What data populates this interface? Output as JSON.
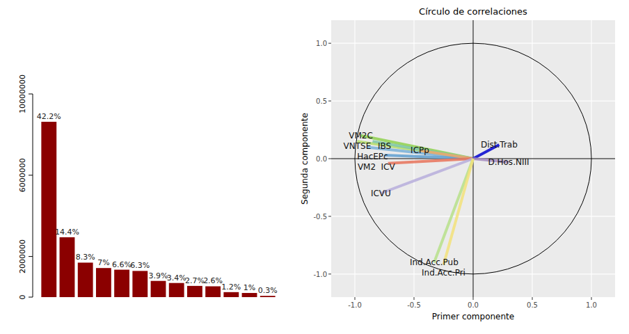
{
  "chart_data": [
    {
      "type": "bar",
      "categories": [
        null,
        null,
        null,
        null,
        null,
        null,
        null,
        null,
        null,
        null,
        null,
        null,
        null
      ],
      "values": [
        8630000,
        2944800,
        1697350,
        1431500,
        1349700,
        1288350,
        797550,
        695300,
        552150,
        531700,
        245400,
        204500,
        61350
      ],
      "value_labels": [
        "42.2%",
        "14.4%",
        "8.3%",
        "7%",
        "6.6%",
        "6.3%",
        "3.9%",
        "3.4%",
        "2.7%",
        "2.6%",
        "1.2%",
        "1%",
        "0.3%"
      ],
      "color": "#8b0000",
      "ylim": [
        0,
        10000000
      ],
      "yticks": [
        0,
        2000000,
        6000000,
        10000000
      ],
      "data_labels": true,
      "tick_labels": "y"
    },
    {
      "type": "vector",
      "title": "Círculo de correlaciones",
      "x_label": "Primer componente",
      "y_label": "Segunda componente",
      "xlim": [
        -1.2,
        1.2
      ],
      "ylim": [
        -1.2,
        1.2
      ],
      "xticks": [
        {
          "value": -1,
          "label": "-1.0"
        },
        {
          "value": -0.5,
          "label": "-0.5"
        },
        {
          "value": 0,
          "label": "0.0"
        },
        {
          "value": 0.5,
          "label": "0.5"
        },
        {
          "value": 1,
          "label": "1.0"
        }
      ],
      "yticks": [
        {
          "value": -1,
          "label": "-1.0"
        },
        {
          "value": -0.5,
          "label": "-0.5"
        },
        {
          "value": 0,
          "label": "0.0"
        },
        {
          "value": 0.5,
          "label": "0.5"
        },
        {
          "value": 1,
          "label": "1.0"
        }
      ],
      "grid": true,
      "series": [
        {
          "name": "VM2C",
          "color": "#8fd14f",
          "x": [
            -0.95
          ],
          "values": [
            0.2
          ]
        },
        {
          "name": "VNTSE",
          "color": "#b5dd6a",
          "x": [
            -0.98
          ],
          "values": [
            0.15
          ]
        },
        {
          "name": "HacEPc",
          "color": "#7cc7a6",
          "x": [
            -0.85
          ],
          "values": [
            0.15
          ]
        },
        {
          "name": "VM2",
          "color": "#79b0d8",
          "x": [
            -0.9
          ],
          "values": [
            0.1
          ]
        },
        {
          "name": "IBS",
          "color": "#5f9fd0",
          "x": [
            -0.75
          ],
          "values": [
            0.03
          ]
        },
        {
          "name": "ICPp",
          "color": "#f0a868",
          "x": [
            -0.45
          ],
          "values": [
            0.07
          ]
        },
        {
          "name": "ICV",
          "color": "#e8735a",
          "x": [
            -0.72
          ],
          "values": [
            -0.04
          ]
        },
        {
          "name": "ICVU",
          "color": "#b7aedc",
          "x": [
            -0.78
          ],
          "values": [
            -0.3
          ]
        },
        {
          "name": "Dist.Trab",
          "color": "#0000d0",
          "x": [
            0.22
          ],
          "values": [
            0.12
          ]
        },
        {
          "name": "D.Hos.NIII",
          "color": "#a58bc0",
          "x": [
            0.3
          ],
          "values": [
            -0.03
          ]
        },
        {
          "name": "Ind.Acc.Pub",
          "color": "#b7e08a",
          "x": [
            -0.33
          ],
          "values": [
            -0.9
          ]
        },
        {
          "name": "Ind.Acc.Pri",
          "color": "#f3e27a",
          "x": [
            -0.25
          ],
          "values": [
            -0.92
          ]
        }
      ]
    }
  ]
}
